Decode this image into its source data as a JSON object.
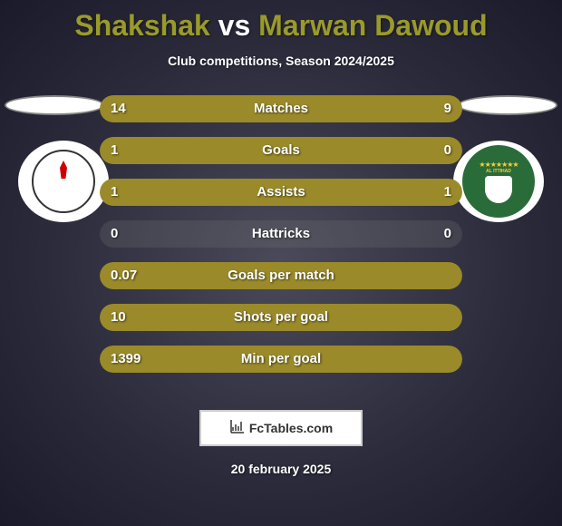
{
  "title": {
    "player1": "Shakshak",
    "vs": "vs",
    "player2": "Marwan Dawoud"
  },
  "subtitle": "Club competitions, Season 2024/2025",
  "colors": {
    "bar_fill": "#9a8a2a",
    "bar_bg": "#777777",
    "title_accent": "#9a9a2a",
    "text": "#ffffff"
  },
  "stats": [
    {
      "label": "Matches",
      "left_val": "14",
      "right_val": "9",
      "left_pct": 60.9,
      "right_pct": 39.1
    },
    {
      "label": "Goals",
      "left_val": "1",
      "right_val": "0",
      "left_pct": 100,
      "right_pct": 0
    },
    {
      "label": "Assists",
      "left_val": "1",
      "right_val": "1",
      "left_pct": 50,
      "right_pct": 50
    },
    {
      "label": "Hattricks",
      "left_val": "0",
      "right_val": "0",
      "left_pct": 0,
      "right_pct": 0
    },
    {
      "label": "Goals per match",
      "left_val": "0.07",
      "right_val": "",
      "left_pct": 100,
      "right_pct": 0
    },
    {
      "label": "Shots per goal",
      "left_val": "10",
      "right_val": "",
      "left_pct": 100,
      "right_pct": 0
    },
    {
      "label": "Min per goal",
      "left_val": "1399",
      "right_val": "",
      "left_pct": 100,
      "right_pct": 0
    }
  ],
  "logo_text": "FcTables.com",
  "date": "20 february 2025",
  "badge_right_text": "AL ITTIHAD"
}
